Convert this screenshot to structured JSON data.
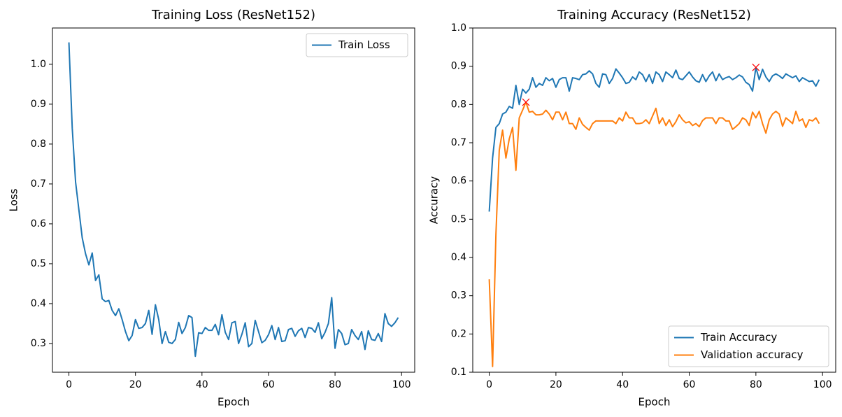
{
  "chart_data": [
    {
      "type": "line",
      "title": "Training Loss (ResNet152)",
      "xlabel": "Epoch",
      "ylabel": "Loss",
      "x": [
        0,
        1,
        2,
        3,
        4,
        5,
        6,
        7,
        8,
        9,
        10,
        11,
        12,
        13,
        14,
        15,
        16,
        17,
        18,
        19,
        20,
        21,
        22,
        23,
        24,
        25,
        26,
        27,
        28,
        29,
        30,
        31,
        32,
        33,
        34,
        35,
        36,
        37,
        38,
        39,
        40,
        41,
        42,
        43,
        44,
        45,
        46,
        47,
        48,
        49,
        50,
        51,
        52,
        53,
        54,
        55,
        56,
        57,
        58,
        59,
        60,
        61,
        62,
        63,
        64,
        65,
        66,
        67,
        68,
        69,
        70,
        71,
        72,
        73,
        74,
        75,
        76,
        77,
        78,
        79,
        80,
        81,
        82,
        83,
        84,
        85,
        86,
        87,
        88,
        89,
        90,
        91,
        92,
        93,
        94,
        95,
        96,
        97,
        98,
        99
      ],
      "series": [
        {
          "name": "Train Loss",
          "color": "#1f77b4",
          "values": [
            1.055,
            0.84,
            0.705,
            0.635,
            0.565,
            0.525,
            0.497,
            0.527,
            0.458,
            0.472,
            0.412,
            0.405,
            0.408,
            0.383,
            0.37,
            0.387,
            0.36,
            0.33,
            0.307,
            0.32,
            0.36,
            0.338,
            0.34,
            0.35,
            0.383,
            0.323,
            0.397,
            0.36,
            0.3,
            0.33,
            0.303,
            0.3,
            0.31,
            0.353,
            0.325,
            0.34,
            0.37,
            0.365,
            0.268,
            0.327,
            0.325,
            0.34,
            0.333,
            0.333,
            0.348,
            0.322,
            0.372,
            0.328,
            0.31,
            0.352,
            0.355,
            0.3,
            0.323,
            0.352,
            0.292,
            0.3,
            0.358,
            0.33,
            0.302,
            0.308,
            0.322,
            0.345,
            0.31,
            0.34,
            0.305,
            0.307,
            0.335,
            0.338,
            0.318,
            0.332,
            0.338,
            0.315,
            0.34,
            0.338,
            0.328,
            0.352,
            0.312,
            0.328,
            0.35,
            0.415,
            0.288,
            0.335,
            0.325,
            0.297,
            0.3,
            0.335,
            0.32,
            0.31,
            0.33,
            0.285,
            0.332,
            0.31,
            0.308,
            0.325,
            0.305,
            0.375,
            0.35,
            0.343,
            0.352,
            0.365
          ]
        }
      ],
      "xlim": [
        -4.95,
        103.95
      ],
      "xticks": [
        0,
        20,
        40,
        60,
        80,
        100
      ],
      "ylim": [
        0.228,
        1.091
      ],
      "yticks": [
        0.3,
        0.4,
        0.5,
        0.6,
        0.7,
        0.8,
        0.9,
        {
          "value": 1,
          "label": "1.0"
        }
      ],
      "legend": "upper right"
    },
    {
      "type": "line",
      "title": "Training Accuracy (ResNet152)",
      "xlabel": "Epoch",
      "ylabel": "Accuracy",
      "x": [
        0,
        1,
        2,
        3,
        4,
        5,
        6,
        7,
        8,
        9,
        10,
        11,
        12,
        13,
        14,
        15,
        16,
        17,
        18,
        19,
        20,
        21,
        22,
        23,
        24,
        25,
        26,
        27,
        28,
        29,
        30,
        31,
        32,
        33,
        34,
        35,
        36,
        37,
        38,
        39,
        40,
        41,
        42,
        43,
        44,
        45,
        46,
        47,
        48,
        49,
        50,
        51,
        52,
        53,
        54,
        55,
        56,
        57,
        58,
        59,
        60,
        61,
        62,
        63,
        64,
        65,
        66,
        67,
        68,
        69,
        70,
        71,
        72,
        73,
        74,
        75,
        76,
        77,
        78,
        79,
        80,
        81,
        82,
        83,
        84,
        85,
        86,
        87,
        88,
        89,
        90,
        91,
        92,
        93,
        94,
        95,
        96,
        97,
        98,
        99
      ],
      "series": [
        {
          "name": "Train Accuracy",
          "color": "#1f77b4",
          "values": [
            0.52,
            0.66,
            0.74,
            0.75,
            0.775,
            0.78,
            0.795,
            0.79,
            0.85,
            0.8,
            0.84,
            0.83,
            0.84,
            0.87,
            0.845,
            0.855,
            0.85,
            0.87,
            0.862,
            0.868,
            0.845,
            0.865,
            0.87,
            0.87,
            0.835,
            0.87,
            0.868,
            0.865,
            0.878,
            0.88,
            0.888,
            0.88,
            0.855,
            0.845,
            0.88,
            0.878,
            0.855,
            0.868,
            0.893,
            0.882,
            0.87,
            0.855,
            0.858,
            0.872,
            0.865,
            0.885,
            0.878,
            0.86,
            0.878,
            0.855,
            0.885,
            0.878,
            0.86,
            0.885,
            0.878,
            0.87,
            0.89,
            0.868,
            0.865,
            0.875,
            0.885,
            0.872,
            0.862,
            0.858,
            0.878,
            0.86,
            0.875,
            0.885,
            0.862,
            0.88,
            0.865,
            0.87,
            0.873,
            0.865,
            0.87,
            0.877,
            0.872,
            0.858,
            0.852,
            0.835,
            0.897,
            0.865,
            0.892,
            0.872,
            0.86,
            0.875,
            0.88,
            0.875,
            0.868,
            0.88,
            0.875,
            0.87,
            0.875,
            0.86,
            0.87,
            0.865,
            0.86,
            0.862,
            0.848,
            0.865
          ]
        },
        {
          "name": "Validation accuracy",
          "color": "#ff7f0e",
          "values": [
            0.343,
            0.115,
            0.46,
            0.68,
            0.733,
            0.66,
            0.71,
            0.74,
            0.628,
            0.765,
            0.785,
            0.806,
            0.78,
            0.782,
            0.773,
            0.773,
            0.775,
            0.785,
            0.775,
            0.76,
            0.78,
            0.78,
            0.76,
            0.78,
            0.75,
            0.75,
            0.735,
            0.765,
            0.748,
            0.74,
            0.733,
            0.75,
            0.757,
            0.757,
            0.757,
            0.757,
            0.757,
            0.757,
            0.75,
            0.765,
            0.757,
            0.78,
            0.765,
            0.765,
            0.75,
            0.75,
            0.752,
            0.76,
            0.75,
            0.77,
            0.79,
            0.75,
            0.765,
            0.745,
            0.76,
            0.742,
            0.755,
            0.773,
            0.76,
            0.752,
            0.755,
            0.745,
            0.75,
            0.742,
            0.758,
            0.765,
            0.765,
            0.765,
            0.75,
            0.765,
            0.765,
            0.757,
            0.757,
            0.735,
            0.742,
            0.75,
            0.765,
            0.76,
            0.745,
            0.78,
            0.765,
            0.782,
            0.75,
            0.725,
            0.76,
            0.775,
            0.782,
            0.775,
            0.743,
            0.765,
            0.758,
            0.75,
            0.782,
            0.757,
            0.762,
            0.74,
            0.76,
            0.757,
            0.765,
            0.75
          ]
        }
      ],
      "markers": [
        {
          "x": 11,
          "y": 0.806
        },
        {
          "x": 80,
          "y": 0.897
        }
      ],
      "marker_color": "#ff0000",
      "xlim": [
        -4.95,
        103.95
      ],
      "xticks": [
        0,
        20,
        40,
        60,
        80,
        100
      ],
      "ylim": [
        0.1,
        1.0
      ],
      "yticks": [
        0.1,
        0.2,
        0.3,
        0.4,
        0.5,
        0.6,
        0.7,
        0.8,
        0.9,
        {
          "value": 1,
          "label": "1.0"
        }
      ],
      "legend": "lower right"
    }
  ]
}
